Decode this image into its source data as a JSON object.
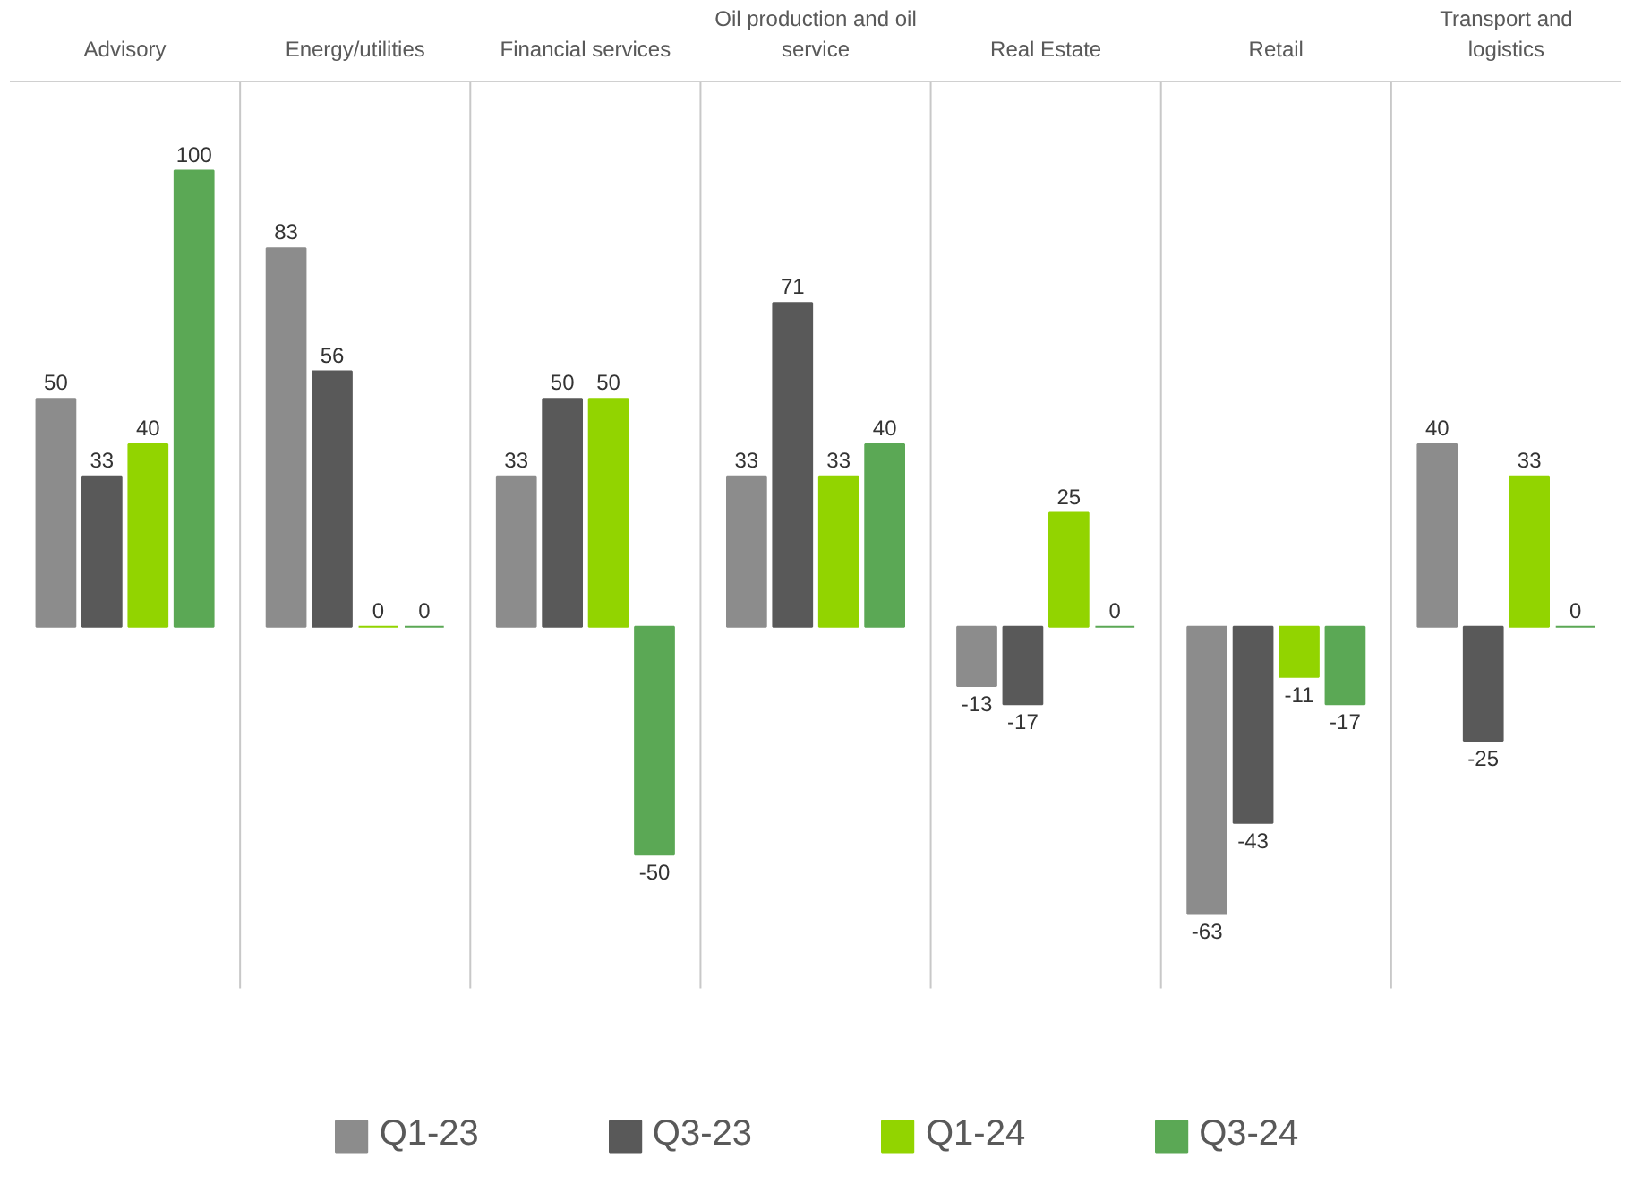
{
  "chart_data": {
    "type": "bar",
    "categories": [
      "Advisory",
      "Energy/utilities",
      "Financial services",
      "Oil production and oil service",
      "Real Estate",
      "Retail",
      "Transport and logistics"
    ],
    "series": [
      {
        "name": "Q1-23",
        "color": "#8c8c8c",
        "values": [
          50,
          83,
          33,
          33,
          -13,
          -63,
          40
        ]
      },
      {
        "name": "Q3-23",
        "color": "#595959",
        "values": [
          33,
          56,
          50,
          71,
          -17,
          -43,
          -25
        ]
      },
      {
        "name": "Q1-24",
        "color": "#92d400",
        "values": [
          40,
          0,
          50,
          33,
          25,
          -11,
          33
        ]
      },
      {
        "name": "Q3-24",
        "color": "#5ba855",
        "values": [
          100,
          0,
          -50,
          40,
          0,
          -17,
          0
        ]
      }
    ],
    "data_labels": true,
    "legend": "bottom",
    "grid": false
  }
}
